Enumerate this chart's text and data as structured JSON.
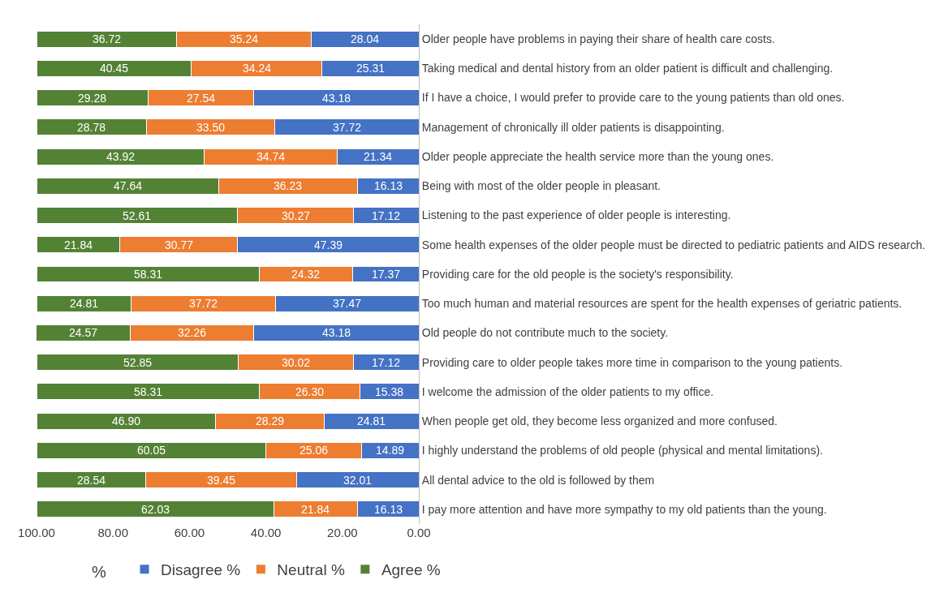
{
  "chart_data": {
    "type": "bar",
    "orientation": "horizontal",
    "stacked": true,
    "xlabel": "%",
    "categories": [
      "Older people have problems in paying their share of health care costs.",
      "Taking medical and dental history from an older patient is difficult and challenging.",
      "If I have a choice, I would prefer to provide care to the young patients than old ones.",
      "Management of chronically ill older patients is disappointing.",
      "Older people appreciate the health service more than the young ones.",
      "Being with most of the older people in pleasant.",
      "Listening to the past experience of older people is interesting.",
      "Some health expenses of the older people must be directed to pediatric patients and AIDS research.",
      "Providing care for the old people is the society's responsibility.",
      "Too much human and material resources are spent for the health expenses of geriatric patients.",
      "Old people do not contribute much to the society.",
      "Providing care to older people takes more time in comparison to the young patients.",
      "I welcome the admission of the older patients to my office.",
      "When people get old, they become less organized and more confused.",
      "I highly understand the problems of old people (physical and mental limitations).",
      "All dental advice to the old is followed by them",
      "I pay more attention and have more sympathy to my old patients than the young."
    ],
    "series": [
      {
        "name": "Disagree %",
        "color": "#4472c4",
        "values": [
          28.04,
          25.31,
          43.18,
          37.72,
          21.34,
          16.13,
          17.12,
          47.39,
          17.37,
          37.47,
          43.18,
          17.12,
          15.38,
          24.81,
          14.89,
          32.01,
          16.13
        ],
        "value_labels": [
          "28.04",
          "25.31",
          "43.18",
          "37.72",
          "21.34",
          "16.13",
          "17.12",
          "47.39",
          "17.37",
          "37.47",
          "43.18",
          "17.12",
          "15.38",
          "24.81",
          "14.89",
          "32.01",
          "16.13"
        ]
      },
      {
        "name": "Neutral %",
        "color": "#ed7d31",
        "values": [
          35.24,
          34.24,
          27.54,
          33.5,
          34.74,
          36.23,
          30.27,
          30.77,
          24.32,
          37.72,
          32.26,
          30.02,
          26.3,
          28.29,
          25.06,
          39.45,
          21.84
        ],
        "value_labels": [
          "35.24",
          "34.24",
          "27.54",
          "33.50",
          "34.74",
          "36.23",
          "30.27",
          "30.77",
          "24.32",
          "37.72",
          "32.26",
          "30.02",
          "26.30",
          "28.29",
          "25.06",
          "39.45",
          "21.84"
        ]
      },
      {
        "name": "Agree %",
        "color": "#548235",
        "values": [
          36.72,
          40.45,
          29.28,
          28.78,
          43.92,
          47.64,
          52.61,
          21.84,
          58.31,
          24.81,
          24.57,
          52.85,
          58.31,
          46.9,
          60.05,
          28.54,
          62.03
        ],
        "value_labels": [
          "36.72",
          "40.45",
          "29.28",
          "28.78",
          "43.92",
          "47.64",
          "52.61",
          "21.84",
          "58.31",
          "24.81",
          "24.57",
          "52.85",
          "58.31",
          "46.90",
          "60.05",
          "28.54",
          "62.03"
        ]
      }
    ],
    "xlim": [
      100,
      0
    ],
    "xticks": [
      {
        "value": 100,
        "label": "100.00"
      },
      {
        "value": 80,
        "label": "80.00"
      },
      {
        "value": 60,
        "label": "60.00"
      },
      {
        "value": 40,
        "label": "40.00"
      },
      {
        "value": 20,
        "label": "20.00"
      },
      {
        "value": 0,
        "label": "0.00"
      }
    ],
    "grid": false,
    "legend": "bottom"
  }
}
